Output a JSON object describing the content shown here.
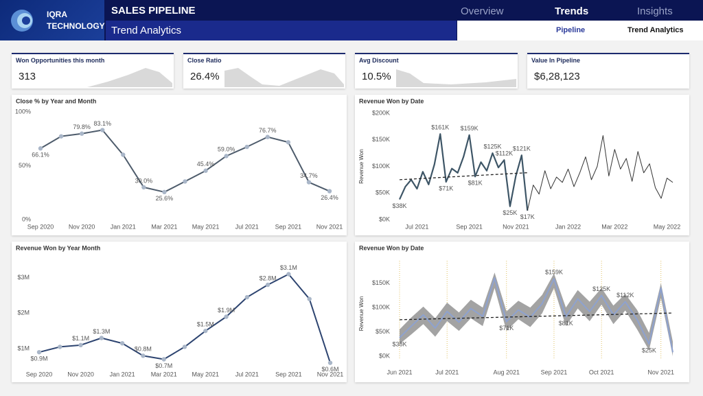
{
  "header": {
    "brand": "IQRA TECHNOLOGY",
    "title": "SALES PIPELINE",
    "subtitle": "Trend Analytics",
    "nav": [
      "Overview",
      "Trends",
      "Insights"
    ],
    "subnav": [
      "Pipeline",
      "Trend Analytics"
    ]
  },
  "kpis": [
    {
      "label": "Won Opportunities this month",
      "value": "313"
    },
    {
      "label": "Close Ratio",
      "value": "26.4%"
    },
    {
      "label": "Avg Discount",
      "value": "10.5%"
    },
    {
      "label": "Value In Pipeline",
      "value": "$6,28,123"
    }
  ],
  "chart_data": [
    {
      "type": "line",
      "title": "Close % by Year and Month",
      "categories": [
        "Sep 2020",
        null,
        "Nov 2020",
        null,
        "Jan 2021",
        null,
        "Mar 2021",
        null,
        "May 2021",
        null,
        "Jul 2021",
        null,
        "Sep 2021",
        null,
        "Nov 2021"
      ],
      "series": [
        {
          "color": "#4d5b6b",
          "markers": true,
          "values": [
            66.1,
            77.3,
            79.8,
            83.1,
            60.2,
            30.0,
            25.6,
            35.4,
            45.4,
            59.0,
            67.5,
            76.7,
            71.8,
            34.7,
            26.4
          ],
          "value_labels": [
            "66.1%",
            null,
            "79.8%",
            "83.1%",
            null,
            "30.0%",
            "25.6%",
            null,
            "45.4%",
            "59.0%",
            null,
            "76.7%",
            null,
            "34.7%",
            "26.4%"
          ]
        }
      ],
      "ylim": [
        0,
        100
      ],
      "yticks": [
        {
          "value": 0,
          "label": "0%"
        },
        {
          "value": 50,
          "label": "50%"
        },
        {
          "value": 100,
          "label": "100%"
        }
      ]
    },
    {
      "type": "line",
      "title": "Revenue Won by Date",
      "ylabel": "Revenue Won",
      "categories": [
        null,
        null,
        null,
        "Jul 2021",
        null,
        null,
        null,
        null,
        null,
        null,
        null,
        null,
        "Sep 2021",
        null,
        null,
        null,
        null,
        null,
        null,
        null,
        "Nov 2021",
        null,
        null,
        null,
        null,
        null,
        null,
        null,
        null,
        "Jan 2022",
        null,
        null,
        null,
        null,
        null,
        null,
        null,
        "Mar 2022",
        null,
        null,
        null,
        null,
        null,
        null,
        null,
        null,
        "May 2022",
        null
      ],
      "series": [
        {
          "color": "#3d5566",
          "width": 2.2,
          "values": [
            38000,
            62000,
            75000,
            58000,
            90000,
            66000,
            104000,
            161000,
            71000,
            96000,
            88000,
            118000,
            159000,
            81000,
            108000,
            92000,
            125000,
            98000,
            112000,
            25000,
            82000,
            121000,
            17000,
            null,
            null,
            null,
            null,
            null,
            null,
            null,
            null,
            null,
            null,
            null,
            null,
            null,
            null,
            null,
            null,
            null,
            null,
            null,
            null,
            null,
            null,
            null,
            null,
            null
          ],
          "value_labels": [
            "$38K",
            null,
            null,
            null,
            null,
            null,
            null,
            "$161K",
            "$71K",
            null,
            null,
            null,
            "$159K",
            "$81K",
            null,
            null,
            "$125K",
            null,
            "$112K",
            "$25K",
            null,
            "$121K",
            "$17K",
            null,
            null,
            null,
            null,
            null,
            null,
            null,
            null,
            null,
            null,
            null,
            null,
            null,
            null,
            null,
            null,
            null,
            null,
            null,
            null,
            null,
            null,
            null,
            null,
            null
          ]
        },
        {
          "color": "#333333",
          "width": 1,
          "values": [
            null,
            null,
            null,
            null,
            null,
            null,
            null,
            null,
            null,
            null,
            null,
            null,
            null,
            null,
            null,
            null,
            null,
            null,
            null,
            null,
            null,
            null,
            17000,
            65000,
            48000,
            92000,
            58000,
            80000,
            70000,
            95000,
            62000,
            88000,
            118000,
            75000,
            100000,
            158000,
            82000,
            132000,
            95000,
            115000,
            72000,
            128000,
            88000,
            105000,
            60000,
            40000,
            78000,
            70000
          ]
        },
        {
          "color": "#222222",
          "width": 1.3,
          "dash": true,
          "values": [
            75000,
            75600,
            76200,
            76800,
            77400,
            78000,
            78600,
            79200,
            79800,
            80400,
            81000,
            81600,
            82200,
            82800,
            83400,
            84000,
            84600,
            85200,
            85800,
            86400,
            87000,
            87600,
            88200,
            null,
            null,
            null,
            null,
            null,
            null,
            null,
            null,
            null,
            null,
            null,
            null,
            null,
            null,
            null,
            null,
            null,
            null,
            null,
            null,
            null,
            null,
            null,
            null,
            null
          ]
        }
      ],
      "ylim": [
        0,
        200000
      ],
      "yticks": [
        {
          "value": 0,
          "label": "$0K"
        },
        {
          "value": 50000,
          "label": "$50K"
        },
        {
          "value": 100000,
          "label": "$100K"
        },
        {
          "value": 150000,
          "label": "$150K"
        },
        {
          "value": 200000,
          "label": "$200K"
        }
      ]
    },
    {
      "type": "line",
      "title": "Revenue Won by Year Month",
      "categories": [
        "Sep 2020",
        null,
        "Nov 2020",
        null,
        "Jan 2021",
        null,
        "Mar 2021",
        null,
        "May 2021",
        null,
        "Jul 2021",
        null,
        "Sep 2021",
        null,
        "Nov 2021"
      ],
      "series": [
        {
          "color": "#2d4470",
          "markers": true,
          "values": [
            900000,
            1050000,
            1100000,
            1300000,
            1150000,
            800000,
            700000,
            1050000,
            1500000,
            1900000,
            2450000,
            2800000,
            3100000,
            2400000,
            600000
          ],
          "value_labels": [
            "$0.9M",
            null,
            "$1.1M",
            "$1.3M",
            null,
            "$0.8M",
            "$0.7M",
            null,
            "$1.5M",
            "$1.9M",
            null,
            "$2.8M",
            "$3.1M",
            null,
            "$0.6M"
          ]
        }
      ],
      "ylim": [
        400000,
        3400000
      ],
      "yticks": [
        {
          "value": 1000000,
          "label": "$1M"
        },
        {
          "value": 2000000,
          "label": "$2M"
        },
        {
          "value": 3000000,
          "label": "$3M"
        }
      ]
    },
    {
      "type": "line",
      "title": "Revenue Won by Date",
      "ylabel": "Revenue Won",
      "xgrid": true,
      "categories": [
        "Jun 2021",
        null,
        null,
        null,
        "Jul 2021",
        null,
        null,
        null,
        null,
        "Aug 2021",
        null,
        null,
        null,
        "Sep 2021",
        null,
        null,
        null,
        "Oct 2021",
        null,
        null,
        null,
        null,
        "Nov 2021",
        null
      ],
      "band": {
        "color": "#a3a3a3",
        "high": [
          55000,
          80000,
          102000,
          78000,
          110000,
          90000,
          116000,
          100000,
          172000,
          92000,
          114000,
          100000,
          126000,
          170000,
          100000,
          136000,
          112000,
          140000,
          104000,
          128000,
          95000,
          48000,
          150000,
          30000
        ],
        "low": [
          25000,
          45000,
          66000,
          40000,
          72000,
          52000,
          78000,
          62000,
          140000,
          52000,
          76000,
          60000,
          88000,
          140000,
          62000,
          98000,
          72000,
          106000,
          66000,
          94000,
          55000,
          12000,
          120000,
          0
        ]
      },
      "series": [
        {
          "color": "#8ea2cf",
          "width": 2,
          "values": [
            38000,
            62000,
            85000,
            58000,
            92000,
            70000,
            98000,
            82000,
            161000,
            71000,
            95000,
            80000,
            108000,
            159000,
            81000,
            118000,
            92000,
            125000,
            85000,
            112000,
            75000,
            25000,
            140000,
            8000
          ],
          "value_labels": [
            "$38K",
            null,
            null,
            null,
            null,
            null,
            null,
            null,
            null,
            "$71K",
            null,
            null,
            null,
            "$159K",
            "$81K",
            null,
            null,
            "$125K",
            null,
            "$112K",
            null,
            "$25K",
            null,
            null
          ]
        },
        {
          "color": "#222222",
          "width": 1.3,
          "dash": true,
          "values": [
            75000,
            75600,
            76200,
            76800,
            77400,
            78000,
            78600,
            79200,
            79800,
            80400,
            81000,
            81600,
            82200,
            82800,
            83400,
            84000,
            84600,
            85200,
            85800,
            86400,
            87000,
            87600,
            88200,
            88800
          ]
        }
      ],
      "ylim": [
        0,
        175000
      ],
      "yticks": [
        {
          "value": 0,
          "label": "$0K"
        },
        {
          "value": 50000,
          "label": "$50K"
        },
        {
          "value": 100000,
          "label": "$100K"
        },
        {
          "value": 150000,
          "label": "$150K"
        }
      ]
    }
  ]
}
